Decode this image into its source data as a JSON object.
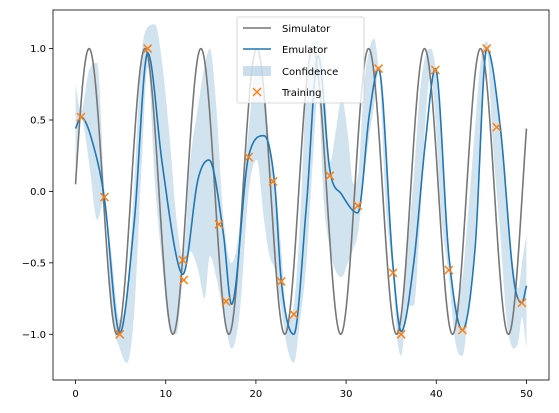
{
  "chart_data": {
    "type": "line",
    "title": "",
    "xlabel": "",
    "ylabel": "",
    "xlim": [
      -2.5,
      52.5
    ],
    "ylim": [
      -1.32,
      1.27
    ],
    "xticks": [
      0,
      10,
      20,
      30,
      40,
      50
    ],
    "yticks": [
      -1.0,
      -0.5,
      0.0,
      0.5,
      1.0
    ],
    "xtick_labels": [
      "0",
      "10",
      "20",
      "30",
      "40",
      "50"
    ],
    "ytick_labels": [
      "−1.0",
      "−0.5",
      "0.0",
      "0.5",
      "1.0"
    ],
    "grid": false,
    "legend_position": "top-center",
    "legend": [
      "Simulator",
      "Emulator",
      "Confidence",
      "Training"
    ],
    "series": [
      {
        "name": "Simulator",
        "kind": "line",
        "color": "#777777",
        "formula": "sin(2*pi*x/6.2 + 0.05)",
        "x": [
          0,
          1.5,
          4.6,
          7.8,
          10.9,
          14.0,
          17.1,
          20.2,
          23.4,
          26.5,
          29.6,
          32.7,
          35.8,
          39.0,
          42.1,
          45.2,
          48.3,
          50.0
        ],
        "y": [
          0.05,
          1.0,
          -1.0,
          1.0,
          -1.0,
          1.0,
          -1.0,
          1.0,
          -1.0,
          1.0,
          -1.0,
          1.0,
          -1.0,
          1.0,
          -1.0,
          1.0,
          -1.0,
          -0.28
        ]
      },
      {
        "name": "Emulator",
        "kind": "line",
        "color": "#1f77b4",
        "x": [
          0.0,
          0.6,
          2.2,
          3.2,
          4.9,
          6.5,
          8.0,
          9.6,
          11.2,
          11.9,
          13.6,
          14.8,
          16.4,
          17.3,
          19.2,
          20.9,
          22.1,
          22.8,
          24.2,
          25.6,
          26.9,
          28.2,
          29.5,
          31.3,
          32.6,
          33.6,
          35.2,
          36.1,
          37.5,
          38.8,
          39.9,
          41.4,
          42.9,
          44.3,
          45.6,
          47.1,
          48.6,
          49.5,
          50.0
        ],
        "y": [
          0.44,
          0.52,
          0.27,
          -0.05,
          -0.99,
          -0.22,
          0.97,
          0.2,
          -0.46,
          -0.58,
          0.09,
          0.22,
          -0.3,
          -0.79,
          0.25,
          0.39,
          0.04,
          -0.62,
          -1.0,
          -0.1,
          0.95,
          0.15,
          -0.02,
          -0.15,
          0.55,
          0.86,
          -0.52,
          -0.98,
          -0.5,
          0.35,
          0.86,
          -0.45,
          -0.97,
          -0.4,
          1.0,
          0.45,
          -0.62,
          -0.78,
          -0.66
        ]
      },
      {
        "name": "Confidence",
        "kind": "band",
        "color": "#a6c8e2",
        "x": [
          0.0,
          0.6,
          1.5,
          2.4,
          3.2,
          4.0,
          4.9,
          5.7,
          6.5,
          7.3,
          8.0,
          8.8,
          9.6,
          10.4,
          11.2,
          11.9,
          12.7,
          13.6,
          14.3,
          14.9,
          15.6,
          16.4,
          17.3,
          18.2,
          19.2,
          20.1,
          20.9,
          21.5,
          22.1,
          22.8,
          23.5,
          24.2,
          24.9,
          25.6,
          26.3,
          26.9,
          27.5,
          28.2,
          28.8,
          29.5,
          30.2,
          30.8,
          31.3,
          32.0,
          32.6,
          33.1,
          33.6,
          34.4,
          35.2,
          35.7,
          36.1,
          36.8,
          37.5,
          38.2,
          38.8,
          39.4,
          39.9,
          40.6,
          41.4,
          42.1,
          42.9,
          43.6,
          44.3,
          44.9,
          45.6,
          46.3,
          47.1,
          47.8,
          48.6,
          49.1,
          49.5,
          50.0
        ],
        "lower": [
          0.14,
          0.52,
          0.2,
          -0.2,
          -0.06,
          -0.85,
          -1.1,
          -1.2,
          -0.85,
          0.15,
          0.87,
          0.05,
          -0.5,
          -0.95,
          -1.0,
          -0.6,
          -0.42,
          -0.55,
          -0.75,
          -0.45,
          -0.6,
          -0.85,
          -1.1,
          -0.85,
          0.0,
          0.22,
          -0.2,
          -0.45,
          -0.55,
          -0.82,
          -1.1,
          -1.2,
          -0.9,
          -0.5,
          0.2,
          0.7,
          -0.05,
          -0.4,
          -0.55,
          -0.6,
          -0.5,
          -0.4,
          -0.3,
          0.1,
          0.4,
          0.6,
          0.84,
          -0.1,
          -0.6,
          -1.05,
          -1.15,
          -0.8,
          -0.8,
          -0.2,
          0.5,
          0.83,
          0.5,
          -0.2,
          -0.6,
          -1.05,
          -1.15,
          -0.8,
          -0.3,
          0.4,
          0.98,
          0.3,
          -0.3,
          -0.9,
          -1.1,
          -1.05,
          -0.88,
          -1.1
        ],
        "upper": [
          0.75,
          0.56,
          0.85,
          0.9,
          0.0,
          -0.45,
          -0.9,
          -0.7,
          0.05,
          0.95,
          1.15,
          1.17,
          0.9,
          0.4,
          -0.2,
          -0.46,
          0.2,
          0.6,
          0.88,
          1.0,
          0.6,
          -0.19,
          -0.5,
          -0.25,
          0.44,
          0.9,
          0.75,
          0.35,
          0.1,
          -0.4,
          -0.9,
          -0.8,
          -0.2,
          0.75,
          1.05,
          1.05,
          0.9,
          0.2,
          0.4,
          0.65,
          0.4,
          0.05,
          0.1,
          0.75,
          1.0,
          1.07,
          0.87,
          0.35,
          -0.5,
          -0.8,
          -0.9,
          -0.4,
          0.1,
          0.7,
          0.95,
          1.0,
          0.87,
          0.35,
          -0.4,
          -0.8,
          -0.6,
          -0.1,
          0.45,
          0.9,
          1.05,
          0.8,
          0.47,
          -0.1,
          -0.55,
          -0.68,
          -0.5,
          -0.3
        ]
      },
      {
        "name": "Training",
        "kind": "scatter",
        "color": "#ff7f0e",
        "marker": "x",
        "x": [
          0.6,
          3.2,
          4.9,
          8.0,
          11.9,
          12.0,
          15.9,
          16.7,
          19.2,
          21.9,
          22.8,
          24.2,
          28.2,
          31.3,
          33.6,
          35.2,
          36.1,
          39.9,
          41.4,
          42.9,
          45.6,
          46.7,
          49.5
        ],
        "y": [
          0.52,
          -0.04,
          -1.0,
          1.0,
          -0.48,
          -0.62,
          -0.23,
          -0.77,
          0.24,
          0.07,
          -0.63,
          -0.86,
          0.11,
          -0.1,
          0.86,
          -0.57,
          -1.0,
          0.85,
          -0.55,
          -0.97,
          1.0,
          0.45,
          -0.78
        ]
      }
    ]
  }
}
